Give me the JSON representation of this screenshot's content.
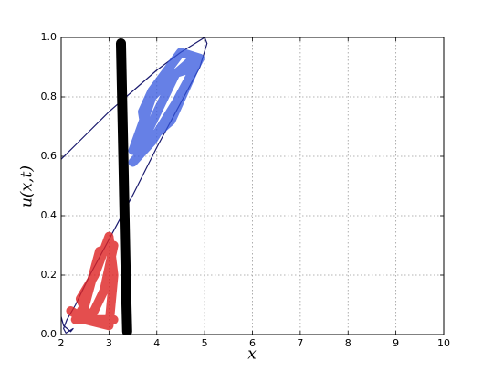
{
  "chart_data": {
    "type": "line",
    "xlabel": "x",
    "ylabel": "u(x,t)",
    "xlim": [
      2,
      10
    ],
    "ylim": [
      0,
      1
    ],
    "xticks": [
      2,
      3,
      4,
      5,
      6,
      7,
      8,
      9,
      10
    ],
    "yticks": [
      {
        "value": 0,
        "label": "0.0"
      },
      0.2,
      0.4,
      0.6,
      0.8,
      {
        "value": 1,
        "label": "1.0"
      }
    ],
    "grid": true,
    "series": [
      {
        "color": "#1a1a6e",
        "x": [
          2.0,
          2.5,
          3.0,
          3.5,
          4.0,
          4.5,
          4.8,
          5.0,
          5.05,
          4.9,
          4.5,
          4.0,
          3.5,
          3.0,
          2.6,
          2.3,
          2.12,
          2.05,
          2.1,
          2.25,
          2.2,
          2.05,
          2.0
        ],
        "values": [
          0.59,
          0.67,
          0.75,
          0.82,
          0.89,
          0.95,
          0.98,
          1.0,
          0.98,
          0.9,
          0.78,
          0.63,
          0.47,
          0.32,
          0.2,
          0.1,
          0.05,
          0.02,
          0.005,
          0.02,
          0.01,
          0.03,
          0.06
        ]
      },
      {
        "color": "#000000",
        "x": [
          3.25,
          3.3,
          3.35,
          3.38
        ],
        "values": [
          0.98,
          0.6,
          0.2,
          0.01
        ]
      },
      {
        "color": "#3355dd",
        "x": [
          3.5,
          3.9,
          4.4,
          4.9,
          4.5,
          3.9,
          3.7,
          3.8,
          4.3,
          4.8,
          4.4,
          3.8,
          3.5,
          3.9,
          4.2,
          4.7
        ],
        "values": [
          0.58,
          0.65,
          0.78,
          0.93,
          0.95,
          0.82,
          0.75,
          0.65,
          0.72,
          0.9,
          0.88,
          0.68,
          0.62,
          0.8,
          0.85,
          0.92
        ]
      },
      {
        "color": "#dd2222",
        "x": [
          2.2,
          2.5,
          3.0,
          3.1,
          3.0,
          2.7,
          2.4,
          2.6,
          2.9,
          3.1,
          2.8,
          2.5,
          2.3,
          3.1
        ],
        "values": [
          0.08,
          0.05,
          0.03,
          0.2,
          0.33,
          0.2,
          0.12,
          0.05,
          0.15,
          0.3,
          0.28,
          0.1,
          0.05,
          0.05
        ]
      }
    ]
  }
}
